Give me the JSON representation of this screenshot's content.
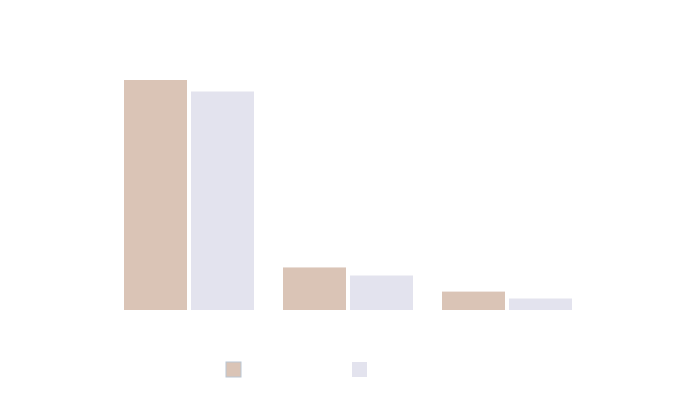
{
  "chart_data": {
    "type": "bar",
    "title": "",
    "xlabel": "",
    "ylabel": "",
    "categories": [
      "",
      "",
      ""
    ],
    "ylim": [
      0,
      100
    ],
    "grid": false,
    "legend_position": "bottom-center",
    "series": [
      {
        "color": "#dac4b6",
        "values": [
          100,
          18.5,
          8
        ]
      },
      {
        "color": "#e3e3ee",
        "values": [
          95,
          15,
          5
        ]
      }
    ]
  }
}
